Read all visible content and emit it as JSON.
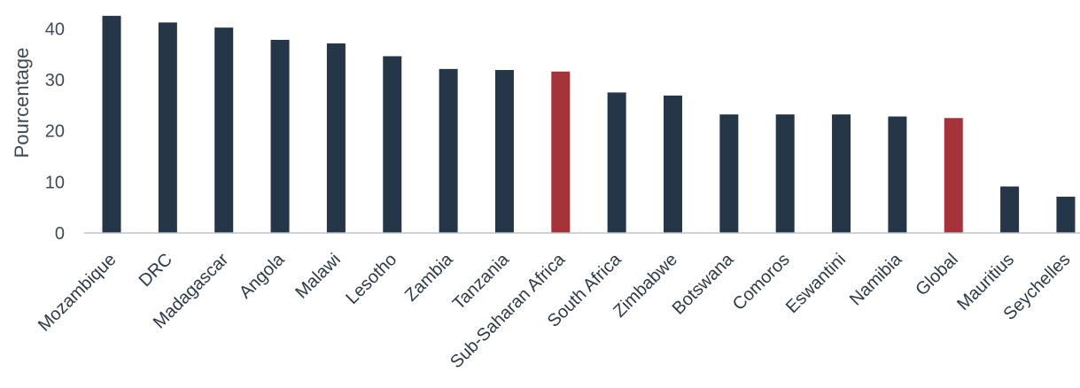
{
  "chart_data": {
    "type": "bar",
    "title": "",
    "xlabel": "",
    "ylabel": "Pourcentage",
    "ylim": [
      0,
      43
    ],
    "yticks": [
      0,
      10,
      20,
      30,
      40
    ],
    "grid": false,
    "legend": "none",
    "categories": [
      "Mozambique",
      "DRC",
      "Madagascar",
      "Angola",
      "Malawi",
      "Lesotho",
      "Zambia",
      "Tanzania",
      "Sub-Saharan Africa",
      "South Africa",
      "Zimbabwe",
      "Botswana",
      "Comoros",
      "Eswantini",
      "Namibia",
      "Global",
      "Mauritius",
      "Seychelles"
    ],
    "values": [
      42.5,
      41.2,
      40.2,
      37.8,
      37.1,
      34.6,
      32.1,
      31.9,
      31.6,
      27.5,
      26.9,
      23.2,
      23.2,
      23.2,
      22.8,
      22.5,
      9.1,
      7.1
    ],
    "colors": {
      "default": "#243647",
      "highlight": "#a4343a",
      "axis": "#b8c4d0"
    },
    "highlighted": [
      "Sub-Saharan Africa",
      "Global"
    ]
  }
}
